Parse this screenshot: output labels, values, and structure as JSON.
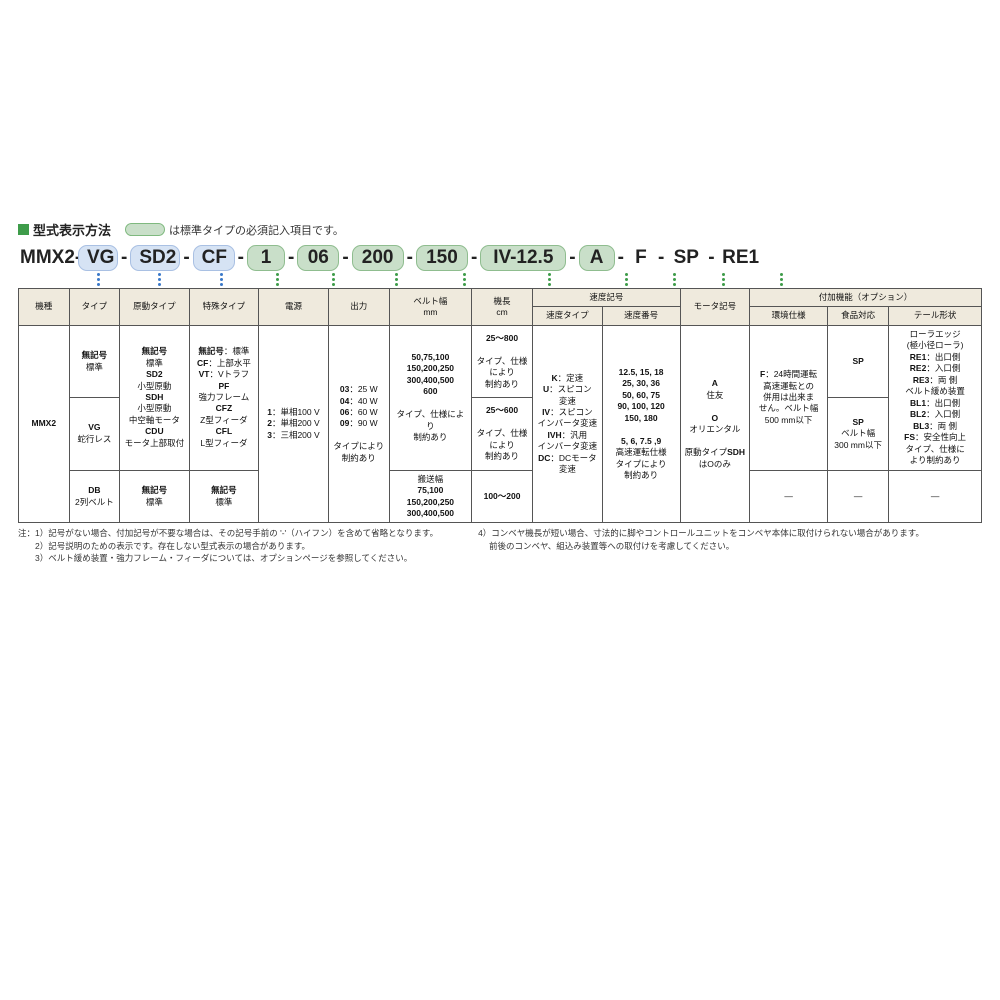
{
  "title": "型式表示方法",
  "legend_text": "は標準タイプの必須記入項目です。",
  "code": {
    "prefix": "MMX2-",
    "s1": "VG",
    "s2": "SD2",
    "s3": "CF",
    "s4": "1",
    "s5": "06",
    "s6": "200",
    "s7": "150",
    "s8": "IV-12.5",
    "s9": "A",
    "s10": "F",
    "s11": "SP",
    "s12": "RE1"
  },
  "headers": {
    "h1": "機種",
    "h2": "タイプ",
    "h3": "原動タイプ",
    "h4": "特殊タイプ",
    "h5": "電源",
    "h6": "出力",
    "h7": "ベルト幅\nmm",
    "h8": "機長\ncm",
    "h9": "速度記号",
    "h9a": "速度タイプ",
    "h9b": "速度番号",
    "h10": "モータ記号",
    "h11": "付加機能（オプション）",
    "h11a": "環境仕様",
    "h11b": "食品対応",
    "h11c": "テール形状"
  },
  "cells": {
    "c_model": "MMX2",
    "c_type1": "無記号\n標準",
    "c_type2": "VG\n蛇行レス",
    "c_type3": "DB\n2列ベルト",
    "c_drive1": "無記号\n標準\nSD2\n小型原動\nSDH\n小型原動\n中空軸モータ\nCDU\nモータ上部取付",
    "c_drive2": "無記号\n標準",
    "c_sp1": "無記号：標準\nCF：上部水平\nVT：Vトラフ\nPF\n強力フレーム\nCFZ\nZ型フィーダ\nCFL\nL型フィーダ",
    "c_sp2": "無記号\n標準",
    "c_pow": "1：単相100 V\n2：単相200 V\n3：三相200 V",
    "c_out": "03：25 W\n04：40 W\n06：60 W\n09：90 W\n\nタイプにより\n制約あり",
    "c_bw1": "50,75,100\n150,200,250\n300,400,500\n600\n\nタイプ、仕様により\n制約あり",
    "c_bw2": "搬送幅\n75,100\n150,200,250\n300,400,500",
    "c_len1": "25〜800\n\nタイプ、仕様\nにより\n制約あり",
    "c_len2": "25〜600\n\nタイプ、仕様\nにより\n制約あり",
    "c_len3": "100〜200",
    "c_spd_t": "K：定速\nU：スピコン\n変速\nIV：スピコン\nインバータ変速\nIVH：汎用\nインバータ変速\nDC：DCモータ\n変速",
    "c_spd_n": "12.5, 15, 18\n25, 30, 36\n50, 60, 75\n90, 100, 120\n150, 180\n\n5, 6, 7.5 ,9\n高速運転仕様\nタイプにより\n制約あり",
    "c_mot": "A\n住友\n\nO\nオリエンタル\n\n原動タイプSDH\nはOのみ",
    "c_env_a": "F：24時間運転\n高速運転との\n併用は出来ま\nせん。ベルト幅\n500 mm以下",
    "c_env_b": "—",
    "c_food_a": "SP",
    "c_food_b": "SP\nベルト幅\n300 mm以下",
    "c_food_c": "—",
    "c_tail_a": "ローラエッジ\n(極小径ローラ)\nRE1：出口側\nRE2：入口側\nRE3：両 側\nベルト緩め装置\nBL1：出口側\nBL2：入口側\nBL3：両 側\nFS：安全性向上\nタイプ、仕様に\nより制約あり",
    "c_tail_b": "—"
  },
  "notes": {
    "l1": "注：1）記号がない場合、付加記号が不要な場合は、その記号手前の '-'（ハイフン）を含めて省略となります。",
    "l2": "　　2）記号説明のための表示です。存在しない型式表示の場合があります。",
    "l3": "　　3）ベルト緩め装置・強力フレーム・フィーダについては、オプションページを参照してください。",
    "r1": "4）コンベヤ機長が短い場合、寸法的に脚やコントロールユニットをコンベヤ本体に取付けられない場合があります。",
    "r2": "　 前後のコンベヤ、組込み装置等への取付けを考慮してください。"
  }
}
